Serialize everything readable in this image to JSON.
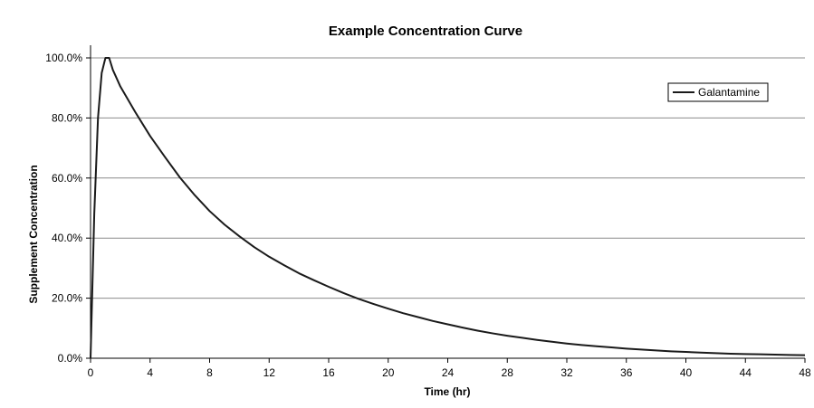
{
  "chart_data": {
    "type": "line",
    "title": "Example Concentration Curve",
    "xlabel": "Time (hr)",
    "ylabel": "Supplement Concentration",
    "xlim": [
      0,
      48
    ],
    "ylim": [
      0,
      1.0
    ],
    "x_ticks": [
      0,
      4,
      8,
      12,
      16,
      20,
      24,
      28,
      32,
      36,
      40,
      44,
      48
    ],
    "x_tick_labels": [
      "0",
      "4",
      "8",
      "12",
      "16",
      "20",
      "24",
      "28",
      "32",
      "36",
      "40",
      "44",
      "48"
    ],
    "y_ticks": [
      0,
      0.2,
      0.4,
      0.6,
      0.8,
      1.0
    ],
    "y_tick_labels": [
      "0.0%",
      "20.0%",
      "40.0%",
      "60.0%",
      "80.0%",
      "100.0%"
    ],
    "grid": "horizontal",
    "legend_position": "top-right",
    "series": [
      {
        "name": "Galantamine",
        "color": "#1a1a1a",
        "x": [
          0,
          0.25,
          0.5,
          0.75,
          1.0,
          1.25,
          1.5,
          2,
          3,
          4,
          5,
          6,
          7,
          8,
          9,
          10,
          11,
          12,
          13,
          14,
          15,
          16,
          17,
          18,
          19,
          20,
          21,
          22,
          23,
          24,
          25,
          26,
          27,
          28,
          29,
          30,
          31,
          32,
          33,
          34,
          35,
          36,
          37,
          38,
          39,
          40,
          41,
          42,
          43,
          44,
          45,
          46,
          47,
          48
        ],
        "y": [
          0.0,
          0.48,
          0.8,
          0.95,
          1.0,
          1.0,
          0.96,
          0.905,
          0.82,
          0.74,
          0.67,
          0.602,
          0.543,
          0.49,
          0.445,
          0.406,
          0.37,
          0.338,
          0.31,
          0.283,
          0.26,
          0.238,
          0.217,
          0.198,
          0.181,
          0.165,
          0.15,
          0.137,
          0.124,
          0.113,
          0.102,
          0.092,
          0.083,
          0.075,
          0.068,
          0.061,
          0.055,
          0.049,
          0.044,
          0.04,
          0.036,
          0.032,
          0.029,
          0.026,
          0.023,
          0.021,
          0.019,
          0.017,
          0.015,
          0.014,
          0.013,
          0.012,
          0.011,
          0.01
        ]
      }
    ]
  }
}
